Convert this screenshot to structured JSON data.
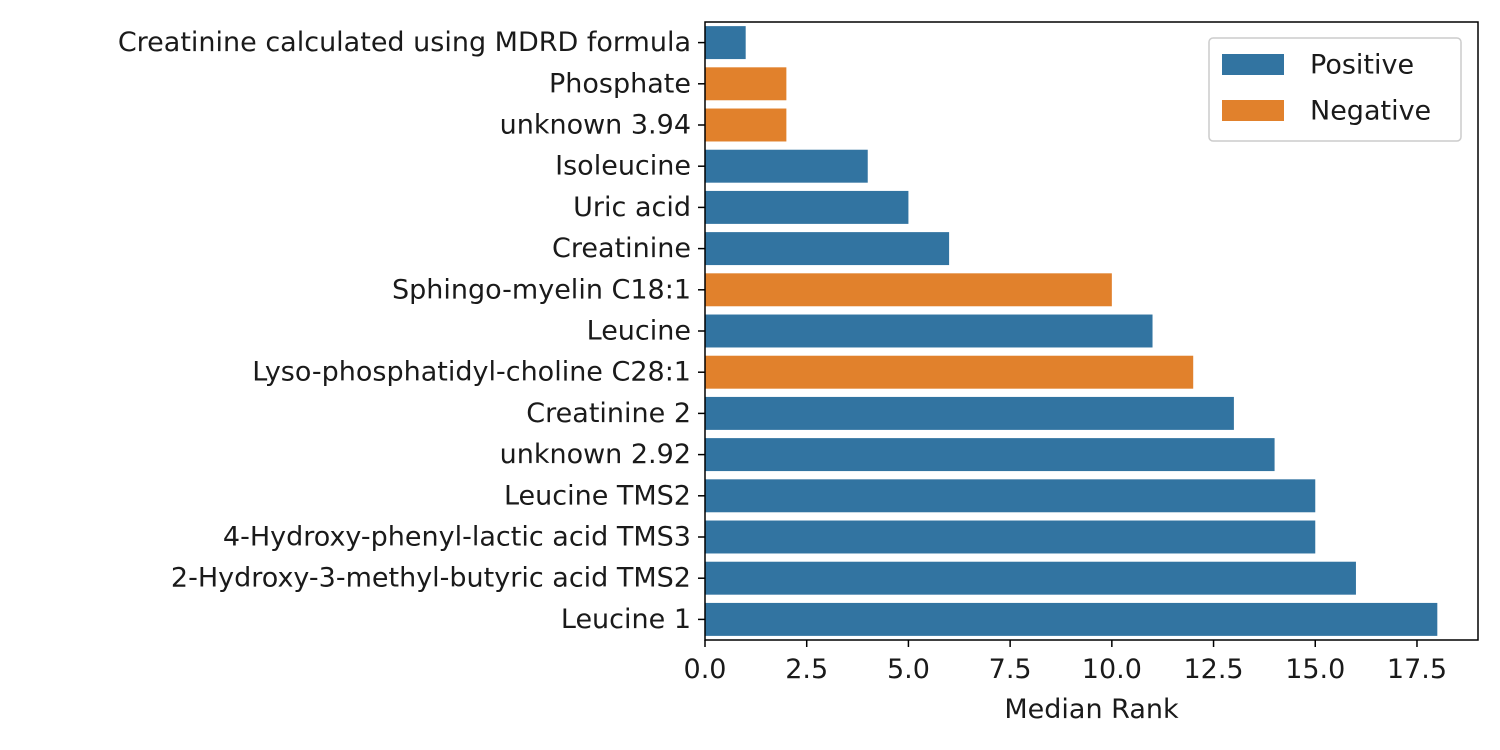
{
  "chart_data": {
    "type": "bar",
    "orientation": "horizontal",
    "xlabel": "Median Rank",
    "ylabel": "",
    "xlim": [
      0,
      19
    ],
    "xticks": [
      "0.0",
      "2.5",
      "5.0",
      "7.5",
      "10.0",
      "12.5",
      "15.0",
      "17.5"
    ],
    "xtick_values": [
      0,
      2.5,
      5,
      7.5,
      10,
      12.5,
      15,
      17.5
    ],
    "grid": false,
    "legend_position": "top-right",
    "colors": {
      "Positive": "#3274a1",
      "Negative": "#e1812c"
    },
    "legend": [
      {
        "label": "Positive",
        "color": "#3274a1"
      },
      {
        "label": "Negative",
        "color": "#e1812c"
      }
    ],
    "categories": [
      "Creatinine calculated using MDRD formula",
      "Phosphate",
      "unknown 3.94",
      "Isoleucine",
      "Uric acid",
      "Creatinine",
      "Sphingo-myelin C18:1",
      "Leucine",
      "Lyso-phosphatidyl-choline C28:1",
      "Creatinine 2",
      "unknown 2.92",
      "Leucine TMS2",
      "4-Hydroxy-phenyl-lactic acid TMS3",
      "2-Hydroxy-3-methyl-butyric acid TMS2",
      "Leucine 1"
    ],
    "values": [
      1,
      2,
      2,
      4,
      5,
      6,
      10,
      11,
      12,
      13,
      14,
      15,
      15,
      16,
      18
    ],
    "groups": [
      "Positive",
      "Negative",
      "Negative",
      "Positive",
      "Positive",
      "Positive",
      "Negative",
      "Positive",
      "Negative",
      "Positive",
      "Positive",
      "Positive",
      "Positive",
      "Positive",
      "Positive"
    ]
  }
}
